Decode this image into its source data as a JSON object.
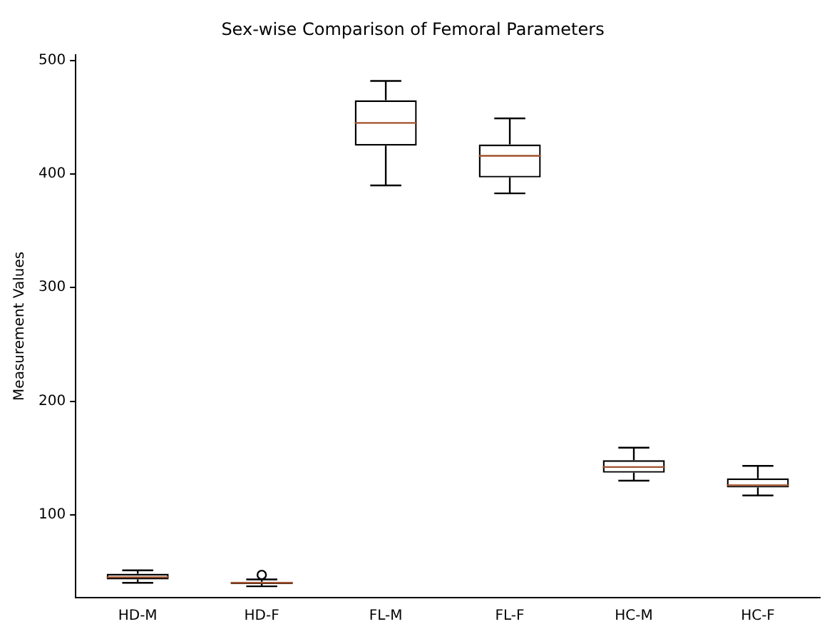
{
  "chart_data": {
    "type": "box",
    "title": "Sex-wise Comparison of Femoral Parameters",
    "ylabel": "Measurement Values",
    "categories": [
      "HD-M",
      "HD-F",
      "FL-M",
      "FL-F",
      "HC-M",
      "HC-F"
    ],
    "boxes": [
      {
        "low": 40,
        "q1": 43,
        "median": 45,
        "q3": 48,
        "high": 51
      },
      {
        "low": 37,
        "q1": 39,
        "median": 40,
        "q3": 41,
        "high": 43,
        "outliers": [
          47
        ]
      },
      {
        "low": 390,
        "q1": 425,
        "median": 445,
        "q3": 465,
        "high": 482
      },
      {
        "low": 383,
        "q1": 397,
        "median": 416,
        "q3": 426,
        "high": 449
      },
      {
        "low": 130,
        "q1": 137,
        "median": 142,
        "q3": 148,
        "high": 159
      },
      {
        "low": 117,
        "q1": 124,
        "median": 126,
        "q3": 132,
        "high": 143
      }
    ],
    "ylim": [
      27,
      505
    ],
    "yticks": [
      100,
      200,
      300,
      400,
      500
    ],
    "grid": false,
    "legend": false
  }
}
